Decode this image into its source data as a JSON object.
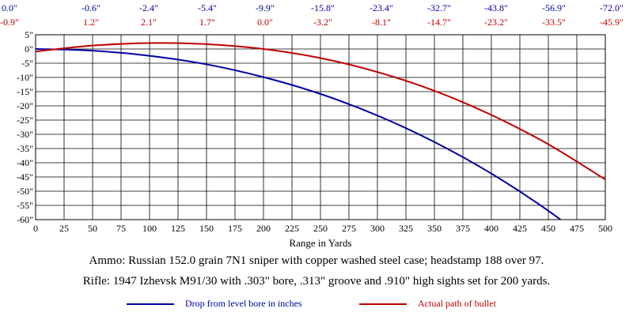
{
  "chart_data": {
    "type": "line",
    "xlabel": "Range in Yards",
    "xlim": [
      0,
      500
    ],
    "ylim": [
      -60,
      5
    ],
    "x_ticks": [
      "0",
      "25",
      "50",
      "75",
      "100",
      "125",
      "150",
      "175",
      "200",
      "225",
      "250",
      "275",
      "300",
      "325",
      "350",
      "375",
      "400",
      "425",
      "450",
      "475",
      "500"
    ],
    "y_ticks": [
      "5\"",
      "0\"",
      "-5\"",
      "-10\"",
      "-15\"",
      "-20\"",
      "-25\"",
      "-30\"",
      "-35\"",
      "-40\"",
      "-45\"",
      "-50\"",
      "-55\"",
      "-60\""
    ],
    "grid": true,
    "top_labels": {
      "blue": [
        "0.0\"",
        "-0.6\"",
        "-2.4\"",
        "-5.4\"",
        "-9.9\"",
        "-15.8\"",
        "-23.4\"",
        "-32.7\"",
        "-43.8\"",
        "-56.9\"",
        "-72.0\""
      ],
      "red": [
        "-0.9\"",
        "1.2\"",
        "2.1\"",
        "1.7\"",
        "0.0\"",
        "-3.2\"",
        "-8.1\"",
        "-14.7\"",
        "-23.2\"",
        "-33.5\"",
        "-45.9\""
      ]
    },
    "series": [
      {
        "name": "Drop from level bore in inches",
        "color": "#0000a0",
        "x": [
          0,
          50,
          100,
          150,
          200,
          250,
          300,
          350,
          400,
          450,
          500
        ],
        "y": [
          0.0,
          -0.6,
          -2.4,
          -5.4,
          -9.9,
          -15.8,
          -23.4,
          -32.7,
          -43.8,
          -56.9,
          -72.0
        ]
      },
      {
        "name": "Actual path of bullet",
        "color": "#c00000",
        "x": [
          0,
          50,
          100,
          150,
          200,
          250,
          300,
          350,
          400,
          450,
          500
        ],
        "y": [
          -0.9,
          1.2,
          2.1,
          1.7,
          0.0,
          -3.2,
          -8.1,
          -14.7,
          -23.2,
          -33.5,
          -45.9
        ]
      }
    ]
  },
  "caption": {
    "ammo": "Ammo: Russian 152.0 grain 7N1 sniper with copper washed steel case; headstamp 188 over 97.",
    "rifle": "Rifle:  1947 Izhevsk M91/30 with .303\" bore, .313\" groove and .910\" high sights set for 200 yards."
  }
}
